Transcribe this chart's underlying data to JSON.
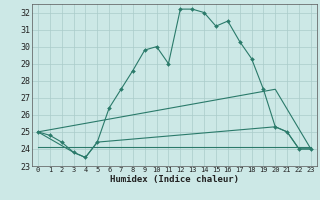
{
  "title": "",
  "xlabel": "Humidex (Indice chaleur)",
  "bg_color": "#cce8e6",
  "grid_color": "#aaccca",
  "line_color": "#2a7a6a",
  "xlim": [
    -0.5,
    23.5
  ],
  "ylim": [
    23.0,
    32.5
  ],
  "yticks": [
    23,
    24,
    25,
    26,
    27,
    28,
    29,
    30,
    31,
    32
  ],
  "xticks": [
    0,
    1,
    2,
    3,
    4,
    5,
    6,
    7,
    8,
    9,
    10,
    11,
    12,
    13,
    14,
    15,
    16,
    17,
    18,
    19,
    20,
    21,
    22,
    23
  ],
  "series0_x": [
    0,
    1,
    2,
    3,
    4,
    5,
    6,
    7,
    8,
    9,
    10,
    11,
    12,
    13,
    14,
    15,
    16,
    17,
    18,
    19,
    20,
    21,
    22,
    23
  ],
  "series0_y": [
    25.0,
    24.8,
    24.4,
    23.8,
    23.5,
    24.4,
    26.4,
    27.5,
    28.6,
    29.8,
    30.0,
    29.0,
    32.2,
    32.2,
    32.0,
    31.2,
    31.5,
    30.3,
    29.3,
    27.5,
    25.3,
    25.0,
    24.0,
    24.0
  ],
  "series1_x": [
    0,
    3,
    4,
    5,
    20,
    21,
    22,
    23
  ],
  "series1_y": [
    25.0,
    23.8,
    23.5,
    24.4,
    25.3,
    25.0,
    24.0,
    24.0
  ],
  "series2_x": [
    0,
    23
  ],
  "series2_y": [
    24.1,
    24.1
  ],
  "series3_x": [
    0,
    20,
    23
  ],
  "series3_y": [
    25.0,
    27.5,
    24.0
  ]
}
